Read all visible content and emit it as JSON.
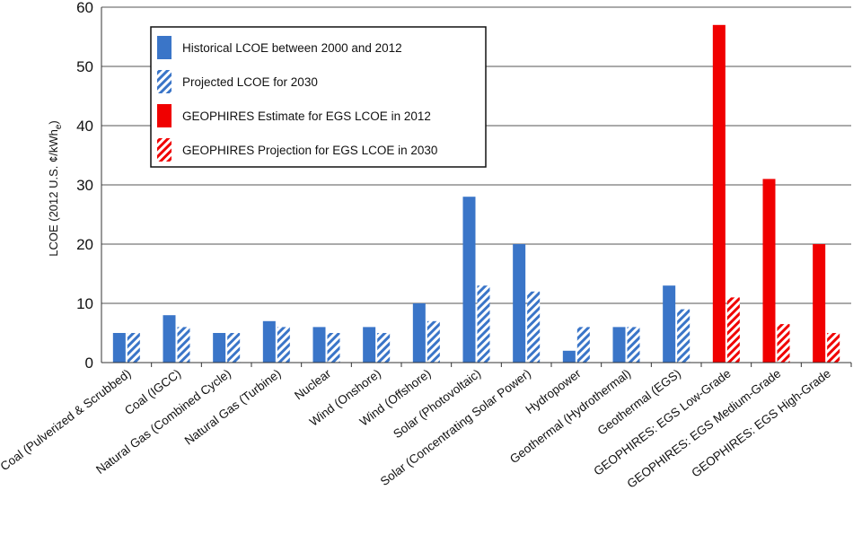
{
  "chart_data": {
    "type": "bar",
    "ylabel_main": "LCOE (2012 U.S. ¢/kWh",
    "ylabel_sub": "e",
    "ylabel_close": ")",
    "ylim": [
      0,
      60
    ],
    "yticks": [
      "0",
      "10",
      "20",
      "30",
      "40",
      "50",
      "60"
    ],
    "categories": [
      "Coal (Pulverized & Scrubbed)",
      "Coal (IGCC)",
      "Natural Gas (Combined Cycle)",
      "Natural Gas (Turbine)",
      "Nuclear",
      "Wind (Onshore)",
      "Wind (Offshore)",
      "Solar (Photovoltaic)",
      "Solar (Concentrating Solar Power)",
      "Hydropower",
      "Geothermal (Hydrothermal)",
      "Geothermal (EGS)",
      "GEOPHIRES: EGS Low-Grade",
      "GEOPHIRES: EGS Medium-Grade",
      "GEOPHIRES: EGS High-Grade"
    ],
    "series": [
      {
        "name": "Historical LCOE between 2000 and 2012",
        "values": [
          5,
          8,
          5,
          7,
          6,
          6,
          10,
          28,
          20,
          2,
          6,
          13,
          null,
          null,
          null
        ]
      },
      {
        "name": "Projected LCOE for 2030",
        "values": [
          5,
          6,
          5,
          6,
          5,
          5,
          7,
          13,
          12,
          6,
          6,
          9,
          null,
          null,
          null
        ]
      },
      {
        "name": "GEOPHIRES Estimate for EGS LCOE in 2012",
        "values": [
          null,
          null,
          null,
          null,
          null,
          null,
          null,
          null,
          null,
          null,
          null,
          null,
          57,
          31,
          20
        ]
      },
      {
        "name": "GEOPHIRES Projection for EGS LCOE in 2030",
        "values": [
          null,
          null,
          null,
          null,
          null,
          null,
          null,
          null,
          null,
          null,
          null,
          null,
          11,
          6.5,
          5
        ]
      }
    ],
    "colors": {
      "blue": "#3a75c8",
      "red": "#f00000"
    },
    "grid": "horizontal",
    "legend_position": "top-left"
  }
}
